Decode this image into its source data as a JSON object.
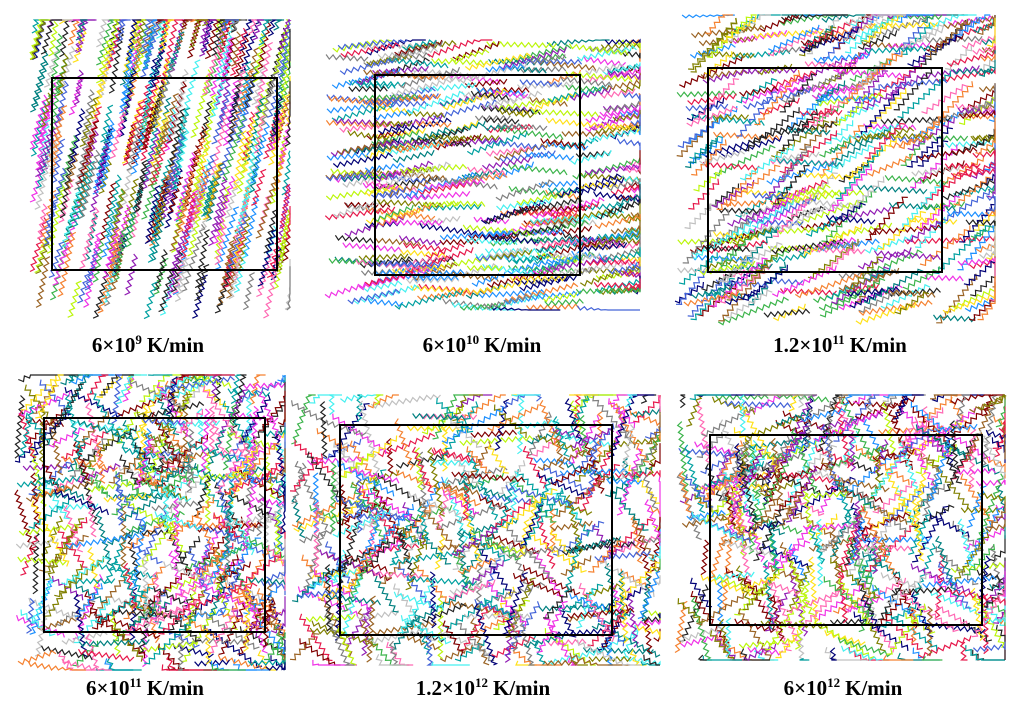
{
  "panels": [
    {
      "label": {
        "base": "6×10",
        "exponent": "9",
        "unit": "K/min"
      }
    },
    {
      "label": {
        "base": "6×10",
        "exponent": "10",
        "unit": "K/min"
      }
    },
    {
      "label": {
        "base": "1.2×10",
        "exponent": "11",
        "unit": "K/min"
      }
    },
    {
      "label": {
        "base": "6×10",
        "exponent": "11",
        "unit": "K/min"
      }
    },
    {
      "label": {
        "base": "1.2×10",
        "exponent": "12",
        "unit": "K/min"
      }
    },
    {
      "label": {
        "base": "6×10",
        "exponent": "12",
        "unit": "K/min"
      }
    }
  ]
}
